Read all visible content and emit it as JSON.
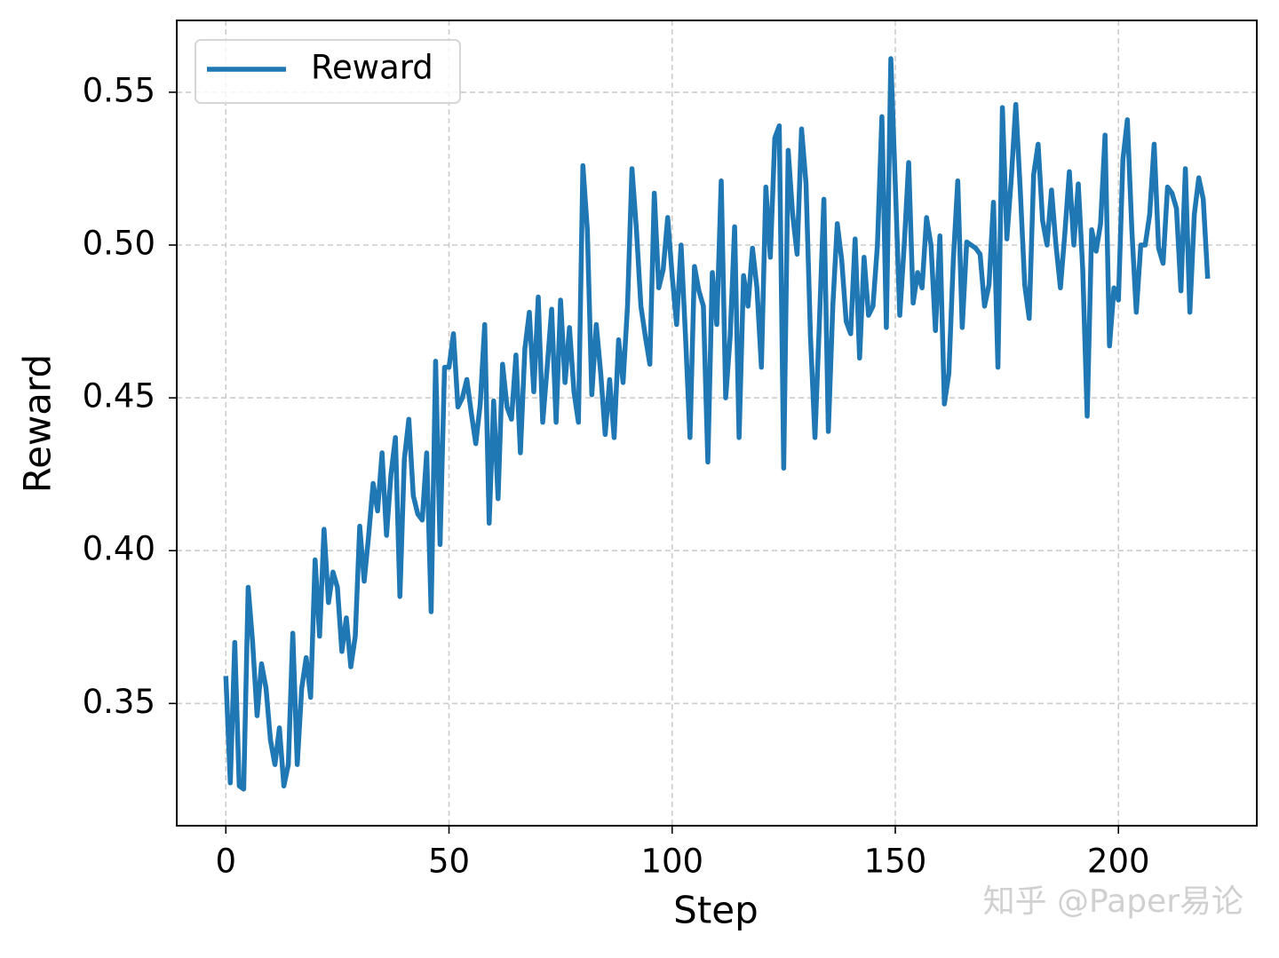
{
  "chart_data": {
    "type": "line",
    "xlabel": "Step",
    "ylabel": "Reward",
    "watermark": "知乎 @Paper易论",
    "x": [
      0,
      1,
      2,
      3,
      4,
      5,
      6,
      7,
      8,
      9,
      10,
      11,
      12,
      13,
      14,
      15,
      16,
      17,
      18,
      19,
      20,
      21,
      22,
      23,
      24,
      25,
      26,
      27,
      28,
      29,
      30,
      31,
      32,
      33,
      34,
      35,
      36,
      37,
      38,
      39,
      40,
      41,
      42,
      43,
      44,
      45,
      46,
      47,
      48,
      49,
      50,
      51,
      52,
      53,
      54,
      55,
      56,
      57,
      58,
      59,
      60,
      61,
      62,
      63,
      64,
      65,
      66,
      67,
      68,
      69,
      70,
      71,
      72,
      73,
      74,
      75,
      76,
      77,
      78,
      79,
      80,
      81,
      82,
      83,
      84,
      85,
      86,
      87,
      88,
      89,
      90,
      91,
      92,
      93,
      94,
      95,
      96,
      97,
      98,
      99,
      100,
      101,
      102,
      103,
      104,
      105,
      106,
      107,
      108,
      109,
      110,
      111,
      112,
      113,
      114,
      115,
      116,
      117,
      118,
      119,
      120,
      121,
      122,
      123,
      124,
      125,
      126,
      127,
      128,
      129,
      130,
      131,
      132,
      133,
      134,
      135,
      136,
      137,
      138,
      139,
      140,
      141,
      142,
      143,
      144,
      145,
      146,
      147,
      148,
      149,
      150,
      151,
      152,
      153,
      154,
      155,
      156,
      157,
      158,
      159,
      160,
      161,
      162,
      163,
      164,
      165,
      166,
      167,
      168,
      169,
      170,
      171,
      172,
      173,
      174,
      175,
      176,
      177,
      178,
      179,
      180,
      181,
      182,
      183,
      184,
      185,
      186,
      187,
      188,
      189,
      190,
      191,
      192,
      193,
      194,
      195,
      196,
      197,
      198,
      199,
      200,
      201,
      202,
      203,
      204,
      205,
      206,
      207,
      208,
      209,
      210,
      211,
      212,
      213,
      214,
      215,
      216,
      217,
      218,
      219,
      220
    ],
    "series": [
      {
        "name": "Reward",
        "color": "#1f77b4",
        "values": [
          0.359,
          0.324,
          0.37,
          0.323,
          0.322,
          0.388,
          0.37,
          0.346,
          0.363,
          0.355,
          0.338,
          0.33,
          0.342,
          0.323,
          0.33,
          0.373,
          0.33,
          0.355,
          0.365,
          0.352,
          0.397,
          0.372,
          0.407,
          0.383,
          0.393,
          0.388,
          0.367,
          0.378,
          0.362,
          0.372,
          0.408,
          0.39,
          0.405,
          0.422,
          0.413,
          0.432,
          0.405,
          0.425,
          0.437,
          0.385,
          0.43,
          0.443,
          0.418,
          0.412,
          0.41,
          0.432,
          0.38,
          0.462,
          0.402,
          0.46,
          0.46,
          0.471,
          0.447,
          0.45,
          0.456,
          0.445,
          0.435,
          0.448,
          0.474,
          0.409,
          0.449,
          0.417,
          0.461,
          0.447,
          0.443,
          0.464,
          0.432,
          0.466,
          0.478,
          0.452,
          0.483,
          0.442,
          0.46,
          0.479,
          0.442,
          0.482,
          0.455,
          0.473,
          0.452,
          0.442,
          0.526,
          0.505,
          0.451,
          0.474,
          0.458,
          0.438,
          0.456,
          0.437,
          0.469,
          0.455,
          0.48,
          0.525,
          0.505,
          0.48,
          0.47,
          0.461,
          0.517,
          0.486,
          0.492,
          0.509,
          0.49,
          0.474,
          0.5,
          0.47,
          0.437,
          0.493,
          0.485,
          0.48,
          0.429,
          0.491,
          0.474,
          0.521,
          0.45,
          0.47,
          0.506,
          0.437,
          0.49,
          0.48,
          0.499,
          0.486,
          0.46,
          0.519,
          0.496,
          0.535,
          0.539,
          0.427,
          0.531,
          0.51,
          0.497,
          0.538,
          0.52,
          0.47,
          0.437,
          0.475,
          0.515,
          0.439,
          0.48,
          0.507,
          0.495,
          0.475,
          0.471,
          0.502,
          0.463,
          0.496,
          0.477,
          0.48,
          0.5,
          0.542,
          0.473,
          0.561,
          0.52,
          0.477,
          0.5,
          0.527,
          0.481,
          0.491,
          0.486,
          0.509,
          0.5,
          0.472,
          0.503,
          0.448,
          0.458,
          0.495,
          0.521,
          0.473,
          0.501,
          0.5,
          0.499,
          0.497,
          0.48,
          0.487,
          0.514,
          0.46,
          0.545,
          0.502,
          0.522,
          0.546,
          0.518,
          0.487,
          0.476,
          0.523,
          0.533,
          0.508,
          0.5,
          0.518,
          0.5,
          0.486,
          0.504,
          0.524,
          0.5,
          0.52,
          0.492,
          0.444,
          0.505,
          0.498,
          0.507,
          0.536,
          0.467,
          0.486,
          0.482,
          0.528,
          0.541,
          0.505,
          0.478,
          0.5,
          0.5,
          0.51,
          0.533,
          0.499,
          0.494,
          0.519,
          0.517,
          0.512,
          0.485,
          0.525,
          0.478,
          0.51,
          0.522,
          0.515,
          0.489
        ]
      }
    ],
    "xlim": [
      -11,
      231
    ],
    "ylim": [
      0.31,
      0.5735
    ],
    "xticks": [
      0,
      50,
      100,
      150,
      200
    ],
    "yticks": [
      0.35,
      {
        "value": 0.4,
        "label": "0.40"
      },
      0.45,
      {
        "value": 0.5,
        "label": "0.50"
      },
      0.55
    ],
    "grid": true,
    "legend": "upper left"
  }
}
